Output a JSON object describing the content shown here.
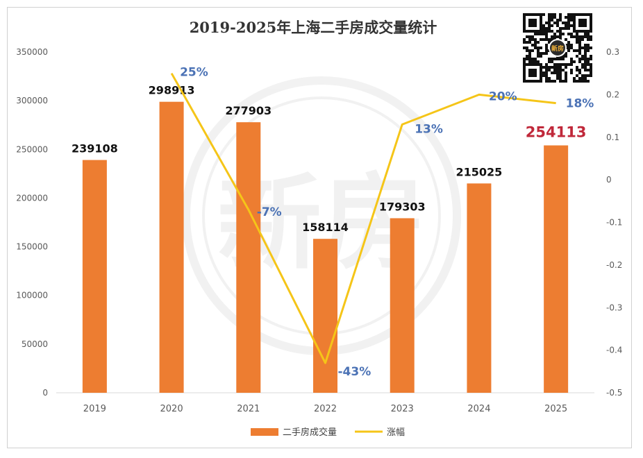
{
  "chart_data": {
    "type": "bar",
    "title": "2019-2025年上海二手房成交量统计",
    "categories": [
      "2019",
      "2020",
      "2021",
      "2022",
      "2023",
      "2024",
      "2025"
    ],
    "series": [
      {
        "name": "二手房成交量",
        "type": "bar",
        "axis": "left",
        "color": "#ed7d31",
        "values": [
          239108,
          298913,
          277903,
          158114,
          179303,
          215025,
          254113
        ],
        "labels": [
          "239108",
          "298913",
          "277903",
          "158114",
          "179303",
          "215025",
          "254113"
        ],
        "highlight_index": 6,
        "highlight_color": "#c0283a"
      },
      {
        "name": "涨幅",
        "type": "line",
        "axis": "right",
        "color": "#f5c518",
        "x": [
          "2020",
          "2021",
          "2022",
          "2023",
          "2024",
          "2025"
        ],
        "values": [
          0.25,
          -0.07,
          -0.43,
          0.13,
          0.2,
          0.18
        ],
        "labels": [
          "25%",
          "-7%",
          "-43%",
          "13%",
          "20%",
          "18%"
        ],
        "label_color": "#4b72b5"
      }
    ],
    "left_axis": {
      "ylim": [
        0,
        350000
      ],
      "ticks": [
        "0",
        "50000",
        "100000",
        "150000",
        "200000",
        "250000",
        "300000",
        "350000"
      ]
    },
    "right_axis": {
      "ylim": [
        -0.5,
        0.3
      ],
      "ticks": [
        "-0.5",
        "-0.4",
        "-0.3",
        "-0.2",
        "-0.1",
        "0",
        "0.1",
        "0.2",
        "0.3"
      ]
    },
    "grid": false,
    "legend_position": "bottom",
    "watermark": "新房",
    "qr_badge": "新房"
  }
}
